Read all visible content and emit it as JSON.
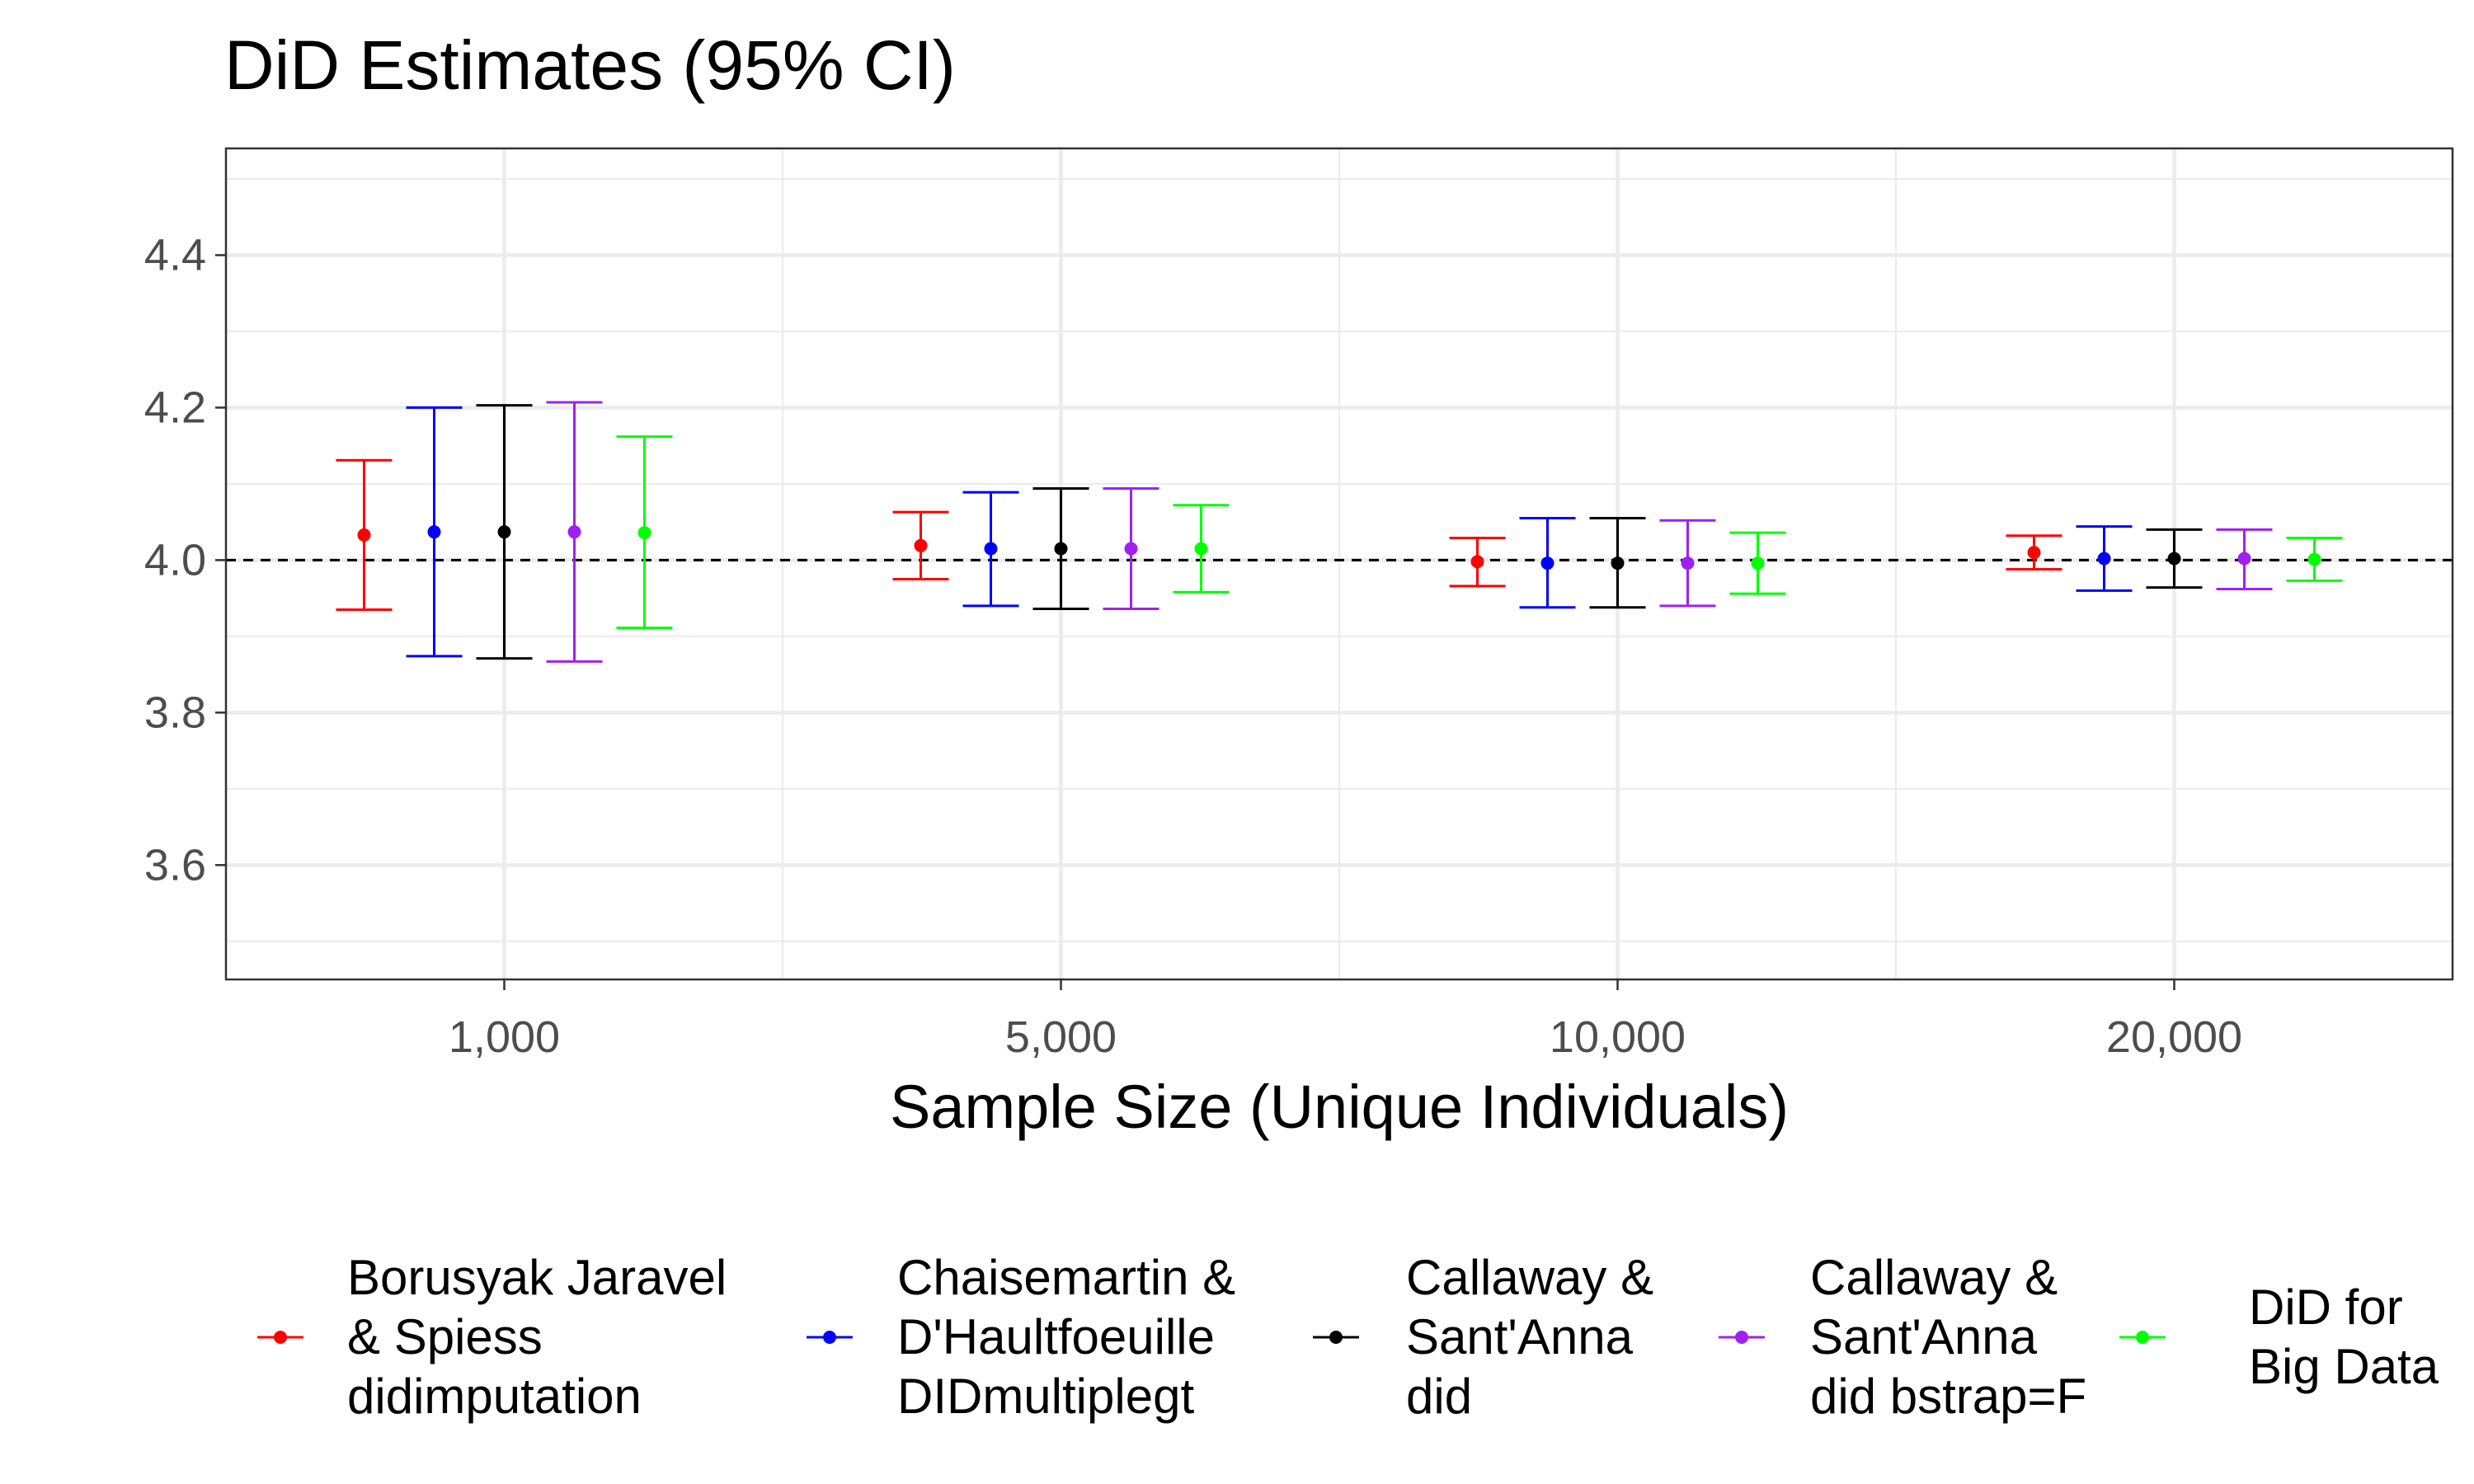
{
  "chart_data": {
    "type": "errorbar",
    "title": "DiD Estimates (95% CI)",
    "xlabel": "Sample Size (Unique Individuals)",
    "ylabel": "",
    "categories": [
      "1,000",
      "5,000",
      "10,000",
      "20,000"
    ],
    "ylim": [
      3.45,
      4.54
    ],
    "yticks": [
      3.6,
      3.8,
      4.0,
      4.2,
      4.4
    ],
    "ytick_labels": [
      "3.6",
      "3.8",
      "4.0",
      "4.2",
      "4.4"
    ],
    "reference_line": 4.0,
    "grid": true,
    "legend_position": "bottom",
    "series": [
      {
        "name": "Borusyak Jaravel & Spiess didimputation",
        "label_lines": [
          "Borusyak Jaravel",
          "& Spiess",
          "didimputation"
        ],
        "color": "#FF0000",
        "estimate": [
          4.033,
          4.019,
          3.998,
          4.01
        ],
        "lower": [
          3.935,
          3.975,
          3.966,
          3.988
        ],
        "upper": [
          4.131,
          4.063,
          4.029,
          4.032
        ]
      },
      {
        "name": "Chaisemartin & D'Haultfoeuille DIDmultiplegt",
        "label_lines": [
          "Chaisemartin &",
          "D'Haultfoeuille",
          "DIDmultiplegt"
        ],
        "color": "#0000FF",
        "estimate": [
          4.037,
          4.015,
          3.996,
          4.002
        ],
        "lower": [
          3.874,
          3.94,
          3.938,
          3.96
        ],
        "upper": [
          4.2,
          4.089,
          4.055,
          4.044
        ]
      },
      {
        "name": "Callaway & Sant'Anna did",
        "label_lines": [
          "Callaway &",
          "Sant'Anna",
          "did"
        ],
        "color": "#000000",
        "estimate": [
          4.037,
          4.015,
          3.996,
          4.002
        ],
        "lower": [
          3.871,
          3.936,
          3.938,
          3.964
        ],
        "upper": [
          4.203,
          4.094,
          4.055,
          4.04
        ]
      },
      {
        "name": "Callaway & Sant'Anna did bstrap=F",
        "label_lines": [
          "Callaway &",
          "Sant'Anna",
          "did bstrap=F"
        ],
        "color": "#A020F0",
        "estimate": [
          4.037,
          4.015,
          3.996,
          4.002
        ],
        "lower": [
          3.867,
          3.936,
          3.94,
          3.962
        ],
        "upper": [
          4.207,
          4.094,
          4.052,
          4.04
        ]
      },
      {
        "name": "DiD for Big Data",
        "label_lines": [
          "DiD for",
          "Big Data"
        ],
        "color": "#00FF00",
        "estimate": [
          4.036,
          4.015,
          3.996,
          4.001
        ],
        "lower": [
          3.911,
          3.958,
          3.956,
          3.973
        ],
        "upper": [
          4.162,
          4.072,
          4.036,
          4.029
        ]
      }
    ]
  }
}
